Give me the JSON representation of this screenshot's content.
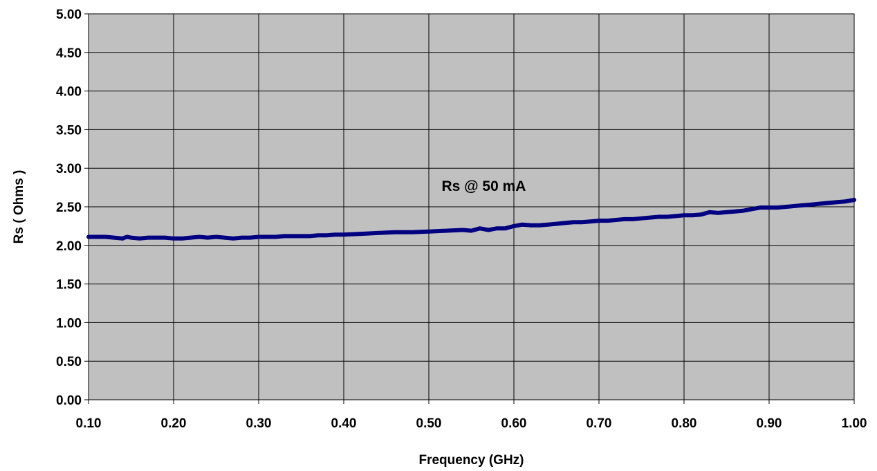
{
  "chart_data": {
    "type": "line",
    "title": "",
    "xlabel": "Frequency (GHz)",
    "ylabel": "Rs ( Ohms )",
    "xlim": [
      0.1,
      1.0
    ],
    "ylim": [
      0.0,
      5.0
    ],
    "x_ticks": [
      "0.10",
      "0.20",
      "0.30",
      "0.40",
      "0.50",
      "0.60",
      "0.70",
      "0.80",
      "0.90",
      "1.00"
    ],
    "y_ticks": [
      "0.00",
      "0.50",
      "1.00",
      "1.50",
      "2.00",
      "2.50",
      "3.00",
      "3.50",
      "4.00",
      "4.50",
      "5.00"
    ],
    "grid": true,
    "legend": "none",
    "annotation": {
      "text": "Rs @ 50 mA",
      "x": 0.515,
      "y": 2.77
    },
    "colors": {
      "plot_background": "#c0c0c0",
      "series_line": "#000080",
      "grid": "#000000"
    },
    "series": [
      {
        "x": [
          0.1,
          0.12,
          0.13,
          0.14,
          0.145,
          0.15,
          0.16,
          0.17,
          0.18,
          0.19,
          0.2,
          0.21,
          0.22,
          0.23,
          0.24,
          0.25,
          0.26,
          0.27,
          0.28,
          0.29,
          0.3,
          0.31,
          0.32,
          0.33,
          0.34,
          0.35,
          0.36,
          0.37,
          0.38,
          0.39,
          0.4,
          0.42,
          0.44,
          0.46,
          0.48,
          0.5,
          0.52,
          0.54,
          0.55,
          0.56,
          0.57,
          0.58,
          0.59,
          0.6,
          0.61,
          0.62,
          0.63,
          0.64,
          0.65,
          0.66,
          0.67,
          0.68,
          0.69,
          0.7,
          0.71,
          0.72,
          0.73,
          0.74,
          0.75,
          0.76,
          0.77,
          0.78,
          0.79,
          0.8,
          0.81,
          0.82,
          0.83,
          0.84,
          0.85,
          0.86,
          0.87,
          0.88,
          0.89,
          0.9,
          0.91,
          0.92,
          0.93,
          0.94,
          0.95,
          0.96,
          0.97,
          0.98,
          0.99,
          1.0
        ],
        "y": [
          2.11,
          2.11,
          2.1,
          2.09,
          2.11,
          2.1,
          2.09,
          2.1,
          2.1,
          2.1,
          2.09,
          2.09,
          2.1,
          2.11,
          2.1,
          2.11,
          2.1,
          2.09,
          2.1,
          2.1,
          2.11,
          2.11,
          2.11,
          2.12,
          2.12,
          2.12,
          2.12,
          2.13,
          2.13,
          2.14,
          2.14,
          2.15,
          2.16,
          2.17,
          2.17,
          2.18,
          2.19,
          2.2,
          2.19,
          2.22,
          2.2,
          2.22,
          2.22,
          2.25,
          2.27,
          2.26,
          2.26,
          2.27,
          2.28,
          2.29,
          2.3,
          2.3,
          2.31,
          2.32,
          2.32,
          2.33,
          2.34,
          2.34,
          2.35,
          2.36,
          2.37,
          2.37,
          2.38,
          2.39,
          2.39,
          2.4,
          2.43,
          2.42,
          2.43,
          2.44,
          2.45,
          2.47,
          2.49,
          2.49,
          2.49,
          2.5,
          2.51,
          2.52,
          2.53,
          2.54,
          2.55,
          2.56,
          2.57,
          2.59
        ]
      }
    ]
  }
}
